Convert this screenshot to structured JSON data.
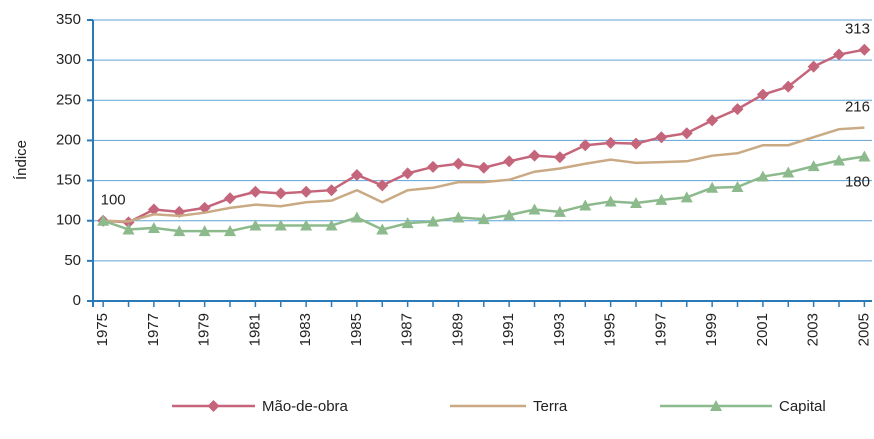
{
  "chart_data": {
    "type": "line",
    "y_label": "Índice",
    "x": [
      1975,
      1976,
      1977,
      1978,
      1979,
      1980,
      1981,
      1982,
      1983,
      1984,
      1985,
      1986,
      1987,
      1988,
      1989,
      1990,
      1991,
      1992,
      1993,
      1994,
      1995,
      1996,
      1997,
      1998,
      1999,
      2000,
      2001,
      2002,
      2003,
      2004,
      2005
    ],
    "xlim": [
      1974.6,
      2005.3
    ],
    "xticks": [
      1975,
      1977,
      1979,
      1981,
      1983,
      1985,
      1987,
      1989,
      1991,
      1993,
      1995,
      1997,
      1999,
      2001,
      2003,
      2005
    ],
    "ylim": [
      0,
      350
    ],
    "yticks": [
      0,
      50,
      100,
      150,
      200,
      250,
      300,
      350
    ],
    "grid": true,
    "legend": "bottom",
    "series": [
      {
        "name": "Mão-de-obra",
        "color": "#c5657b",
        "marker": "diamond",
        "values": [
          100,
          98,
          114,
          111,
          116,
          128,
          136,
          134,
          136,
          138,
          157,
          144,
          159,
          167,
          171,
          166,
          174,
          181,
          179,
          194,
          197,
          196,
          204,
          209,
          225,
          239,
          257,
          267,
          292,
          307,
          313
        ]
      },
      {
        "name": "Terra",
        "color": "#c9aa84",
        "values": [
          100,
          99,
          108,
          106,
          110,
          116,
          120,
          118,
          123,
          125,
          138,
          123,
          138,
          141,
          148,
          148,
          151,
          161,
          165,
          171,
          176,
          172,
          173,
          174,
          181,
          184,
          194,
          194,
          204,
          214,
          216
        ]
      },
      {
        "name": "Capital",
        "color": "#8cba8c",
        "marker": "triangle",
        "values": [
          100,
          89,
          91,
          87,
          87,
          87,
          94,
          94,
          94,
          94,
          104,
          89,
          97,
          99,
          104,
          102,
          107,
          114,
          111,
          119,
          124,
          122,
          126,
          129,
          141,
          142,
          155,
          160,
          168,
          175,
          180
        ]
      }
    ]
  }
}
